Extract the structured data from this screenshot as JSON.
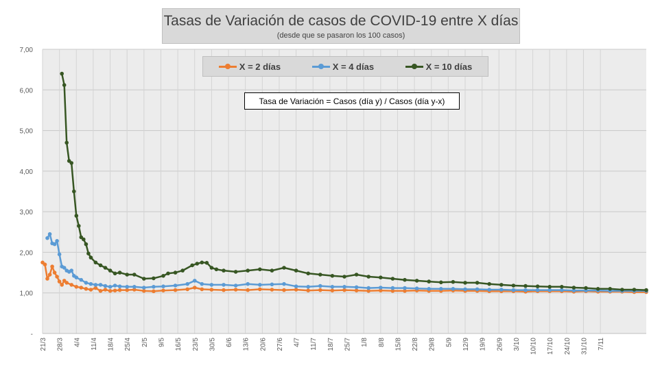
{
  "chart_data": {
    "type": "line",
    "title": "Tasas de Variación de casos de COVID-19 entre X días",
    "subtitle": "(desde que se pasaron los 100 casos)",
    "annotation": "Tasa de Variación = Casos (día y) / Casos (día y-x)",
    "ylim": [
      0,
      7
    ],
    "y_ticks": [
      "-",
      "1,00",
      "2,00",
      "3,00",
      "4,00",
      "5,00",
      "6,00",
      "7,00"
    ],
    "x_labels": [
      "21/3",
      "28/3",
      "4/4",
      "11/4",
      "18/4",
      "25/4",
      "2/5",
      "9/5",
      "16/5",
      "23/5",
      "30/5",
      "6/6",
      "13/6",
      "20/6",
      "27/6",
      "4/7",
      "11/7",
      "18/7",
      "25/7",
      "1/8",
      "8/8",
      "15/8",
      "22/8",
      "29/8",
      "5/9",
      "12/9",
      "19/9",
      "26/9",
      "3/10",
      "10/10",
      "17/10",
      "24/10",
      "31/10",
      "7/11"
    ],
    "grid": true,
    "legend_position": "top",
    "series": [
      {
        "name": "X = 2 días",
        "color": "#ed7d31",
        "x": [
          0,
          1,
          2,
          3,
          4,
          5,
          6,
          7,
          8,
          9,
          10,
          12,
          14,
          16,
          18,
          20,
          22,
          24,
          26,
          28,
          30,
          32,
          35,
          38,
          42,
          46,
          50,
          55,
          60,
          63,
          66,
          70,
          75,
          80,
          85,
          90,
          95,
          100,
          105,
          110,
          115,
          120,
          125,
          130,
          135,
          140,
          145,
          150,
          155,
          160,
          165,
          170,
          175,
          180,
          185,
          190,
          195,
          200,
          205,
          210,
          215,
          220,
          225,
          230,
          235,
          240,
          245,
          250
        ],
        "values": [
          1.75,
          1.7,
          1.35,
          1.45,
          1.65,
          1.5,
          1.4,
          1.28,
          1.2,
          1.3,
          1.25,
          1.2,
          1.15,
          1.13,
          1.1,
          1.08,
          1.12,
          1.05,
          1.08,
          1.05,
          1.06,
          1.07,
          1.07,
          1.08,
          1.05,
          1.04,
          1.06,
          1.07,
          1.09,
          1.13,
          1.09,
          1.08,
          1.07,
          1.08,
          1.07,
          1.09,
          1.08,
          1.07,
          1.08,
          1.06,
          1.07,
          1.06,
          1.07,
          1.06,
          1.05,
          1.06,
          1.05,
          1.05,
          1.06,
          1.05,
          1.05,
          1.06,
          1.05,
          1.05,
          1.04,
          1.04,
          1.04,
          1.03,
          1.04,
          1.04,
          1.04,
          1.03,
          1.04,
          1.03,
          1.03,
          1.03,
          1.02,
          1.02
        ]
      },
      {
        "name": "X = 4 días",
        "color": "#5b9bd5",
        "x": [
          2,
          3,
          4,
          5,
          6,
          7,
          8,
          9,
          10,
          11,
          12,
          13,
          14,
          16,
          18,
          20,
          22,
          24,
          26,
          28,
          30,
          32,
          35,
          38,
          42,
          46,
          50,
          55,
          60,
          63,
          66,
          70,
          75,
          80,
          85,
          90,
          95,
          100,
          105,
          110,
          115,
          120,
          125,
          130,
          135,
          140,
          145,
          150,
          155,
          160,
          165,
          170,
          175,
          180,
          185,
          190,
          195,
          200,
          205,
          210,
          215,
          220,
          225,
          230,
          235,
          240,
          245,
          250
        ],
        "values": [
          2.35,
          2.45,
          2.22,
          2.2,
          2.28,
          1.95,
          1.65,
          1.62,
          1.55,
          1.52,
          1.55,
          1.42,
          1.38,
          1.32,
          1.25,
          1.22,
          1.2,
          1.2,
          1.17,
          1.15,
          1.18,
          1.16,
          1.15,
          1.15,
          1.13,
          1.15,
          1.16,
          1.18,
          1.22,
          1.3,
          1.22,
          1.2,
          1.2,
          1.18,
          1.22,
          1.2,
          1.21,
          1.22,
          1.16,
          1.15,
          1.17,
          1.15,
          1.15,
          1.14,
          1.12,
          1.13,
          1.12,
          1.12,
          1.11,
          1.1,
          1.1,
          1.1,
          1.09,
          1.09,
          1.08,
          1.08,
          1.07,
          1.07,
          1.07,
          1.07,
          1.07,
          1.06,
          1.06,
          1.06,
          1.05,
          1.05,
          1.05,
          1.05
        ]
      },
      {
        "name": "X = 10 días",
        "color": "#375623",
        "x": [
          8,
          9,
          10,
          11,
          12,
          13,
          14,
          15,
          16,
          17,
          18,
          19,
          20,
          22,
          24,
          26,
          28,
          30,
          32,
          35,
          38,
          42,
          46,
          50,
          52,
          55,
          58,
          62,
          64,
          66,
          68,
          70,
          72,
          75,
          80,
          85,
          90,
          95,
          100,
          105,
          110,
          115,
          120,
          125,
          130,
          135,
          140,
          145,
          150,
          155,
          160,
          165,
          170,
          175,
          180,
          185,
          190,
          195,
          200,
          205,
          210,
          215,
          220,
          225,
          230,
          235,
          240,
          245,
          250
        ],
        "values": [
          6.4,
          6.12,
          4.7,
          4.25,
          4.2,
          3.5,
          2.9,
          2.65,
          2.37,
          2.32,
          2.2,
          1.97,
          1.87,
          1.75,
          1.68,
          1.62,
          1.55,
          1.48,
          1.5,
          1.45,
          1.45,
          1.35,
          1.36,
          1.42,
          1.48,
          1.5,
          1.55,
          1.68,
          1.72,
          1.75,
          1.74,
          1.62,
          1.58,
          1.55,
          1.52,
          1.55,
          1.58,
          1.55,
          1.62,
          1.55,
          1.48,
          1.45,
          1.42,
          1.4,
          1.45,
          1.4,
          1.38,
          1.35,
          1.32,
          1.3,
          1.28,
          1.26,
          1.27,
          1.25,
          1.25,
          1.22,
          1.2,
          1.18,
          1.17,
          1.16,
          1.15,
          1.15,
          1.13,
          1.12,
          1.1,
          1.1,
          1.08,
          1.08,
          1.07
        ]
      }
    ]
  }
}
